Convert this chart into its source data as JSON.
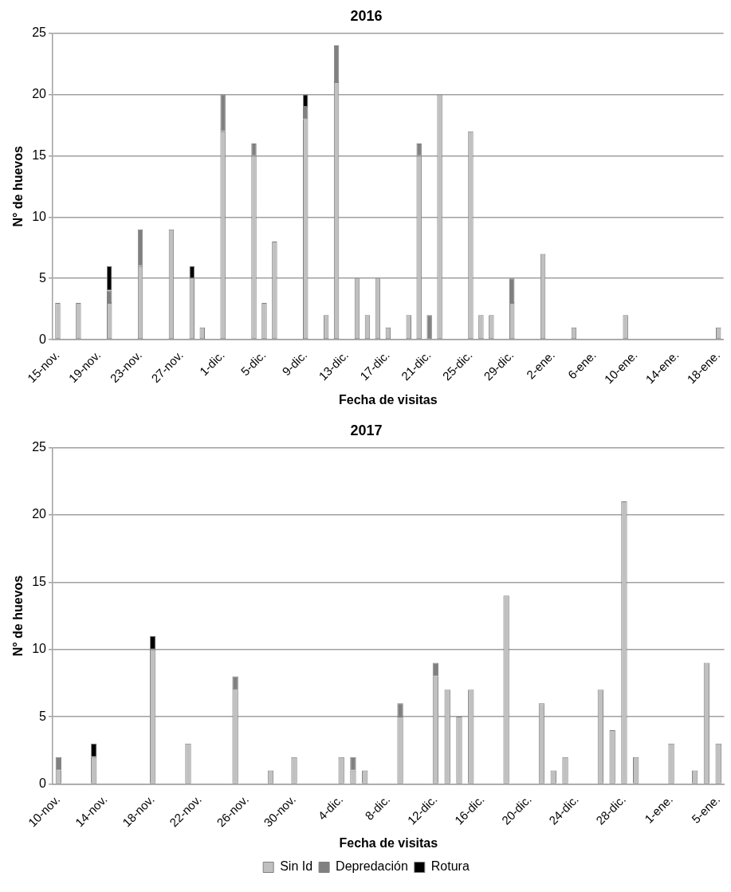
{
  "chart_data": [
    {
      "type": "bar",
      "title": "2016",
      "xlabel": "Fecha de visitas",
      "ylabel": "N° de huevos",
      "stacked": true,
      "grid": "y",
      "legend": false,
      "ylim": [
        0,
        25
      ],
      "yticks": [
        0,
        5,
        10,
        15,
        20,
        25
      ],
      "categories": [
        "15-nov.",
        null,
        null,
        null,
        "19-nov.",
        null,
        null,
        null,
        "23-nov.",
        null,
        null,
        null,
        "27-nov.",
        null,
        null,
        null,
        "1-dic.",
        null,
        null,
        null,
        "5-dic.",
        null,
        null,
        null,
        "9-dic.",
        null,
        null,
        null,
        "13-dic.",
        null,
        null,
        null,
        "17-dic.",
        null,
        null,
        null,
        "21-dic.",
        null,
        null,
        null,
        "25-dic.",
        null,
        null,
        null,
        "29-dic.",
        null,
        null,
        null,
        "2-ene.",
        null,
        null,
        null,
        "6-ene.",
        null,
        null,
        null,
        "10-ene.",
        null,
        null,
        null,
        "14-ene.",
        null,
        null,
        null,
        "18-ene."
      ],
      "series": [
        {
          "color": "#c0c0c0",
          "values": [
            3,
            null,
            3,
            null,
            null,
            3,
            null,
            null,
            6,
            null,
            null,
            9,
            null,
            5,
            1,
            null,
            17,
            null,
            null,
            15,
            3,
            8,
            null,
            null,
            18,
            null,
            2,
            21,
            null,
            5,
            2,
            5,
            1,
            null,
            2,
            15,
            null,
            20,
            null,
            null,
            17,
            2,
            2,
            null,
            3,
            null,
            null,
            7,
            null,
            null,
            1,
            null,
            null,
            null,
            null,
            2,
            null,
            null,
            null,
            null,
            null,
            null,
            null,
            null,
            1
          ]
        },
        {
          "color": "#808080",
          "values": [
            null,
            null,
            null,
            null,
            null,
            1,
            null,
            null,
            3,
            null,
            null,
            null,
            null,
            null,
            null,
            null,
            3,
            null,
            null,
            1,
            null,
            null,
            null,
            null,
            1,
            null,
            null,
            3,
            null,
            null,
            null,
            null,
            null,
            null,
            null,
            1,
            2,
            null,
            null,
            null,
            null,
            null,
            null,
            null,
            2,
            null,
            null,
            null,
            null,
            null,
            null,
            null,
            null,
            null,
            null,
            null,
            null,
            null,
            null,
            null,
            null,
            null,
            null,
            null,
            null
          ]
        },
        {
          "color": "#000000",
          "values": [
            null,
            null,
            null,
            null,
            null,
            2,
            null,
            null,
            null,
            null,
            null,
            null,
            null,
            1,
            null,
            null,
            null,
            null,
            null,
            null,
            null,
            null,
            null,
            null,
            1,
            null,
            null,
            null,
            null,
            null,
            null,
            null,
            null,
            null,
            null,
            null,
            null,
            null,
            null,
            null,
            null,
            null,
            null,
            null,
            null,
            null,
            null,
            null,
            null,
            null,
            null,
            null,
            null,
            null,
            null,
            null,
            null,
            null,
            null,
            null,
            null,
            null,
            null,
            null,
            null
          ]
        }
      ]
    },
    {
      "type": "bar",
      "title": "2017",
      "xlabel": "Fecha de visitas",
      "ylabel": "N° de huevos",
      "stacked": true,
      "grid": "y",
      "legend": "bottom",
      "ylim": [
        0,
        25
      ],
      "yticks": [
        0,
        5,
        10,
        15,
        20,
        25
      ],
      "categories": [
        "10-nov.",
        null,
        null,
        null,
        "14-nov.",
        null,
        null,
        null,
        "18-nov.",
        null,
        null,
        null,
        "22-nov.",
        null,
        null,
        null,
        "26-nov.",
        null,
        null,
        null,
        "30-nov.",
        null,
        null,
        null,
        "4-dic.",
        null,
        null,
        null,
        "8-dic.",
        null,
        null,
        null,
        "12-dic.",
        null,
        null,
        null,
        "16-dic.",
        null,
        null,
        null,
        "20-dic.",
        null,
        null,
        null,
        "24-dic.",
        null,
        null,
        null,
        "28-dic.",
        null,
        null,
        null,
        "1-ene.",
        null,
        null,
        null,
        "5-ene."
      ],
      "series": [
        {
          "name": "Sin Id",
          "color": "#c0c0c0",
          "values": [
            1,
            null,
            null,
            2,
            null,
            null,
            null,
            null,
            10,
            null,
            null,
            3,
            null,
            null,
            null,
            7,
            null,
            null,
            1,
            null,
            2,
            null,
            null,
            null,
            2,
            1,
            1,
            null,
            null,
            5,
            null,
            null,
            8,
            7,
            5,
            7,
            null,
            null,
            14,
            null,
            null,
            6,
            1,
            2,
            null,
            null,
            7,
            4,
            21,
            2,
            null,
            null,
            3,
            null,
            1,
            9,
            3
          ]
        },
        {
          "name": "Depredación",
          "color": "#808080",
          "values": [
            1,
            null,
            null,
            null,
            null,
            null,
            null,
            null,
            null,
            null,
            null,
            null,
            null,
            null,
            null,
            1,
            null,
            null,
            null,
            null,
            null,
            null,
            null,
            null,
            null,
            1,
            null,
            null,
            null,
            1,
            null,
            null,
            1,
            null,
            null,
            null,
            null,
            null,
            null,
            null,
            null,
            null,
            null,
            null,
            null,
            null,
            null,
            null,
            null,
            null,
            null,
            null,
            null,
            null,
            null,
            null,
            null
          ]
        },
        {
          "name": "Rotura",
          "color": "#000000",
          "values": [
            null,
            null,
            null,
            1,
            null,
            null,
            null,
            null,
            1,
            null,
            null,
            null,
            null,
            null,
            null,
            null,
            null,
            null,
            null,
            null,
            null,
            null,
            null,
            null,
            null,
            null,
            null,
            null,
            null,
            null,
            null,
            null,
            null,
            null,
            null,
            null,
            null,
            null,
            null,
            null,
            null,
            null,
            null,
            null,
            null,
            null,
            null,
            null,
            null,
            null,
            null,
            null,
            null,
            null,
            null,
            null,
            null
          ]
        }
      ]
    }
  ]
}
